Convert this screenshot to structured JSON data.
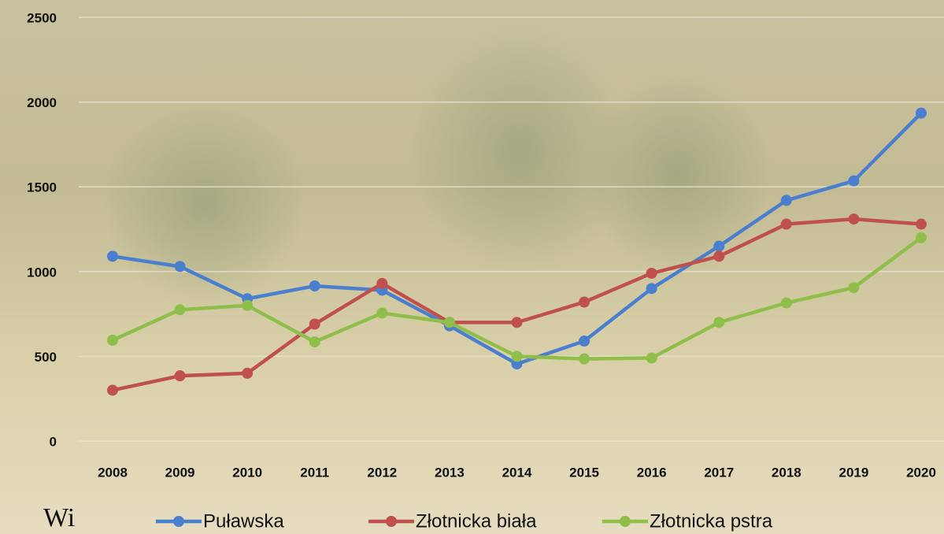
{
  "chart_data": {
    "type": "line",
    "categories": [
      "2008",
      "2009",
      "2010",
      "2011",
      "2012",
      "2013",
      "2014",
      "2015",
      "2016",
      "2017",
      "2018",
      "2019",
      "2020"
    ],
    "series": [
      {
        "name": "Puławska",
        "color": "#4a7fd0",
        "values": [
          1090,
          1030,
          840,
          915,
          890,
          680,
          455,
          590,
          900,
          1150,
          1420,
          1535,
          1935
        ]
      },
      {
        "name": "Złotnicka biała",
        "color": "#c0504d",
        "values": [
          300,
          385,
          400,
          690,
          930,
          700,
          700,
          820,
          990,
          1090,
          1280,
          1310,
          1280
        ]
      },
      {
        "name": "Złotnicka pstra",
        "color": "#8fbf4a",
        "values": [
          595,
          775,
          800,
          585,
          755,
          700,
          500,
          485,
          490,
          700,
          815,
          905,
          1200
        ]
      }
    ],
    "ylim": [
      0,
      2500
    ],
    "yticks": [
      0,
      500,
      1000,
      1500,
      2000,
      2500
    ],
    "grid": true,
    "legend": "bottom",
    "caption": "Wi"
  }
}
